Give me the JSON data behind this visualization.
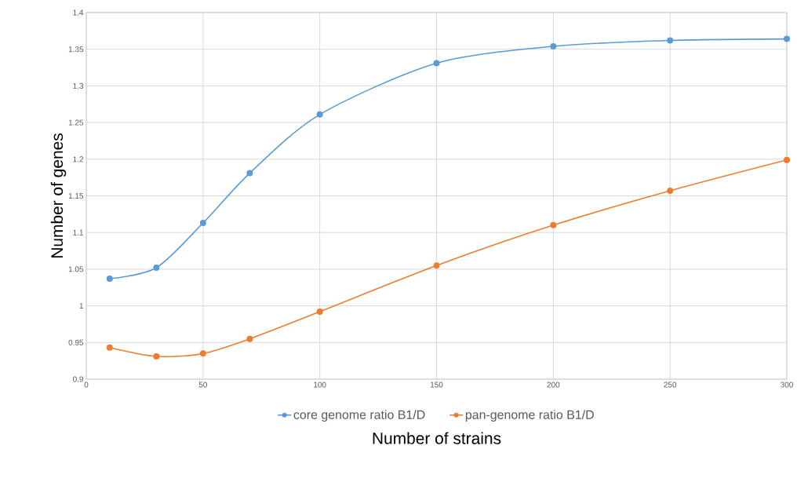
{
  "chart_data": {
    "type": "line",
    "xlabel": "Number of strains",
    "ylabel": "Number of genes",
    "x": [
      10,
      30,
      50,
      70,
      100,
      150,
      200,
      250,
      300
    ],
    "series": [
      {
        "name": "core genome ratio B1/D",
        "color": "#5b9bd5",
        "values": [
          1.037,
          1.052,
          1.113,
          1.181,
          1.261,
          1.331,
          1.354,
          1.362,
          1.364
        ]
      },
      {
        "name": "pan-genome ratio B1/D",
        "color": "#ed7d31",
        "values": [
          0.943,
          0.931,
          0.935,
          0.955,
          0.992,
          1.055,
          1.11,
          1.157,
          1.199
        ]
      }
    ],
    "xlim": [
      0,
      300
    ],
    "xticks": [
      0,
      50,
      100,
      150,
      200,
      250,
      300
    ],
    "ylim": [
      0.9,
      1.4
    ],
    "yticks": [
      0.9,
      0.95,
      1,
      1.05,
      1.1,
      1.15,
      1.2,
      1.25,
      1.3,
      1.35,
      1.4
    ],
    "grid": true,
    "legend": "bottom",
    "marker": "circle",
    "line_style": "solid"
  }
}
